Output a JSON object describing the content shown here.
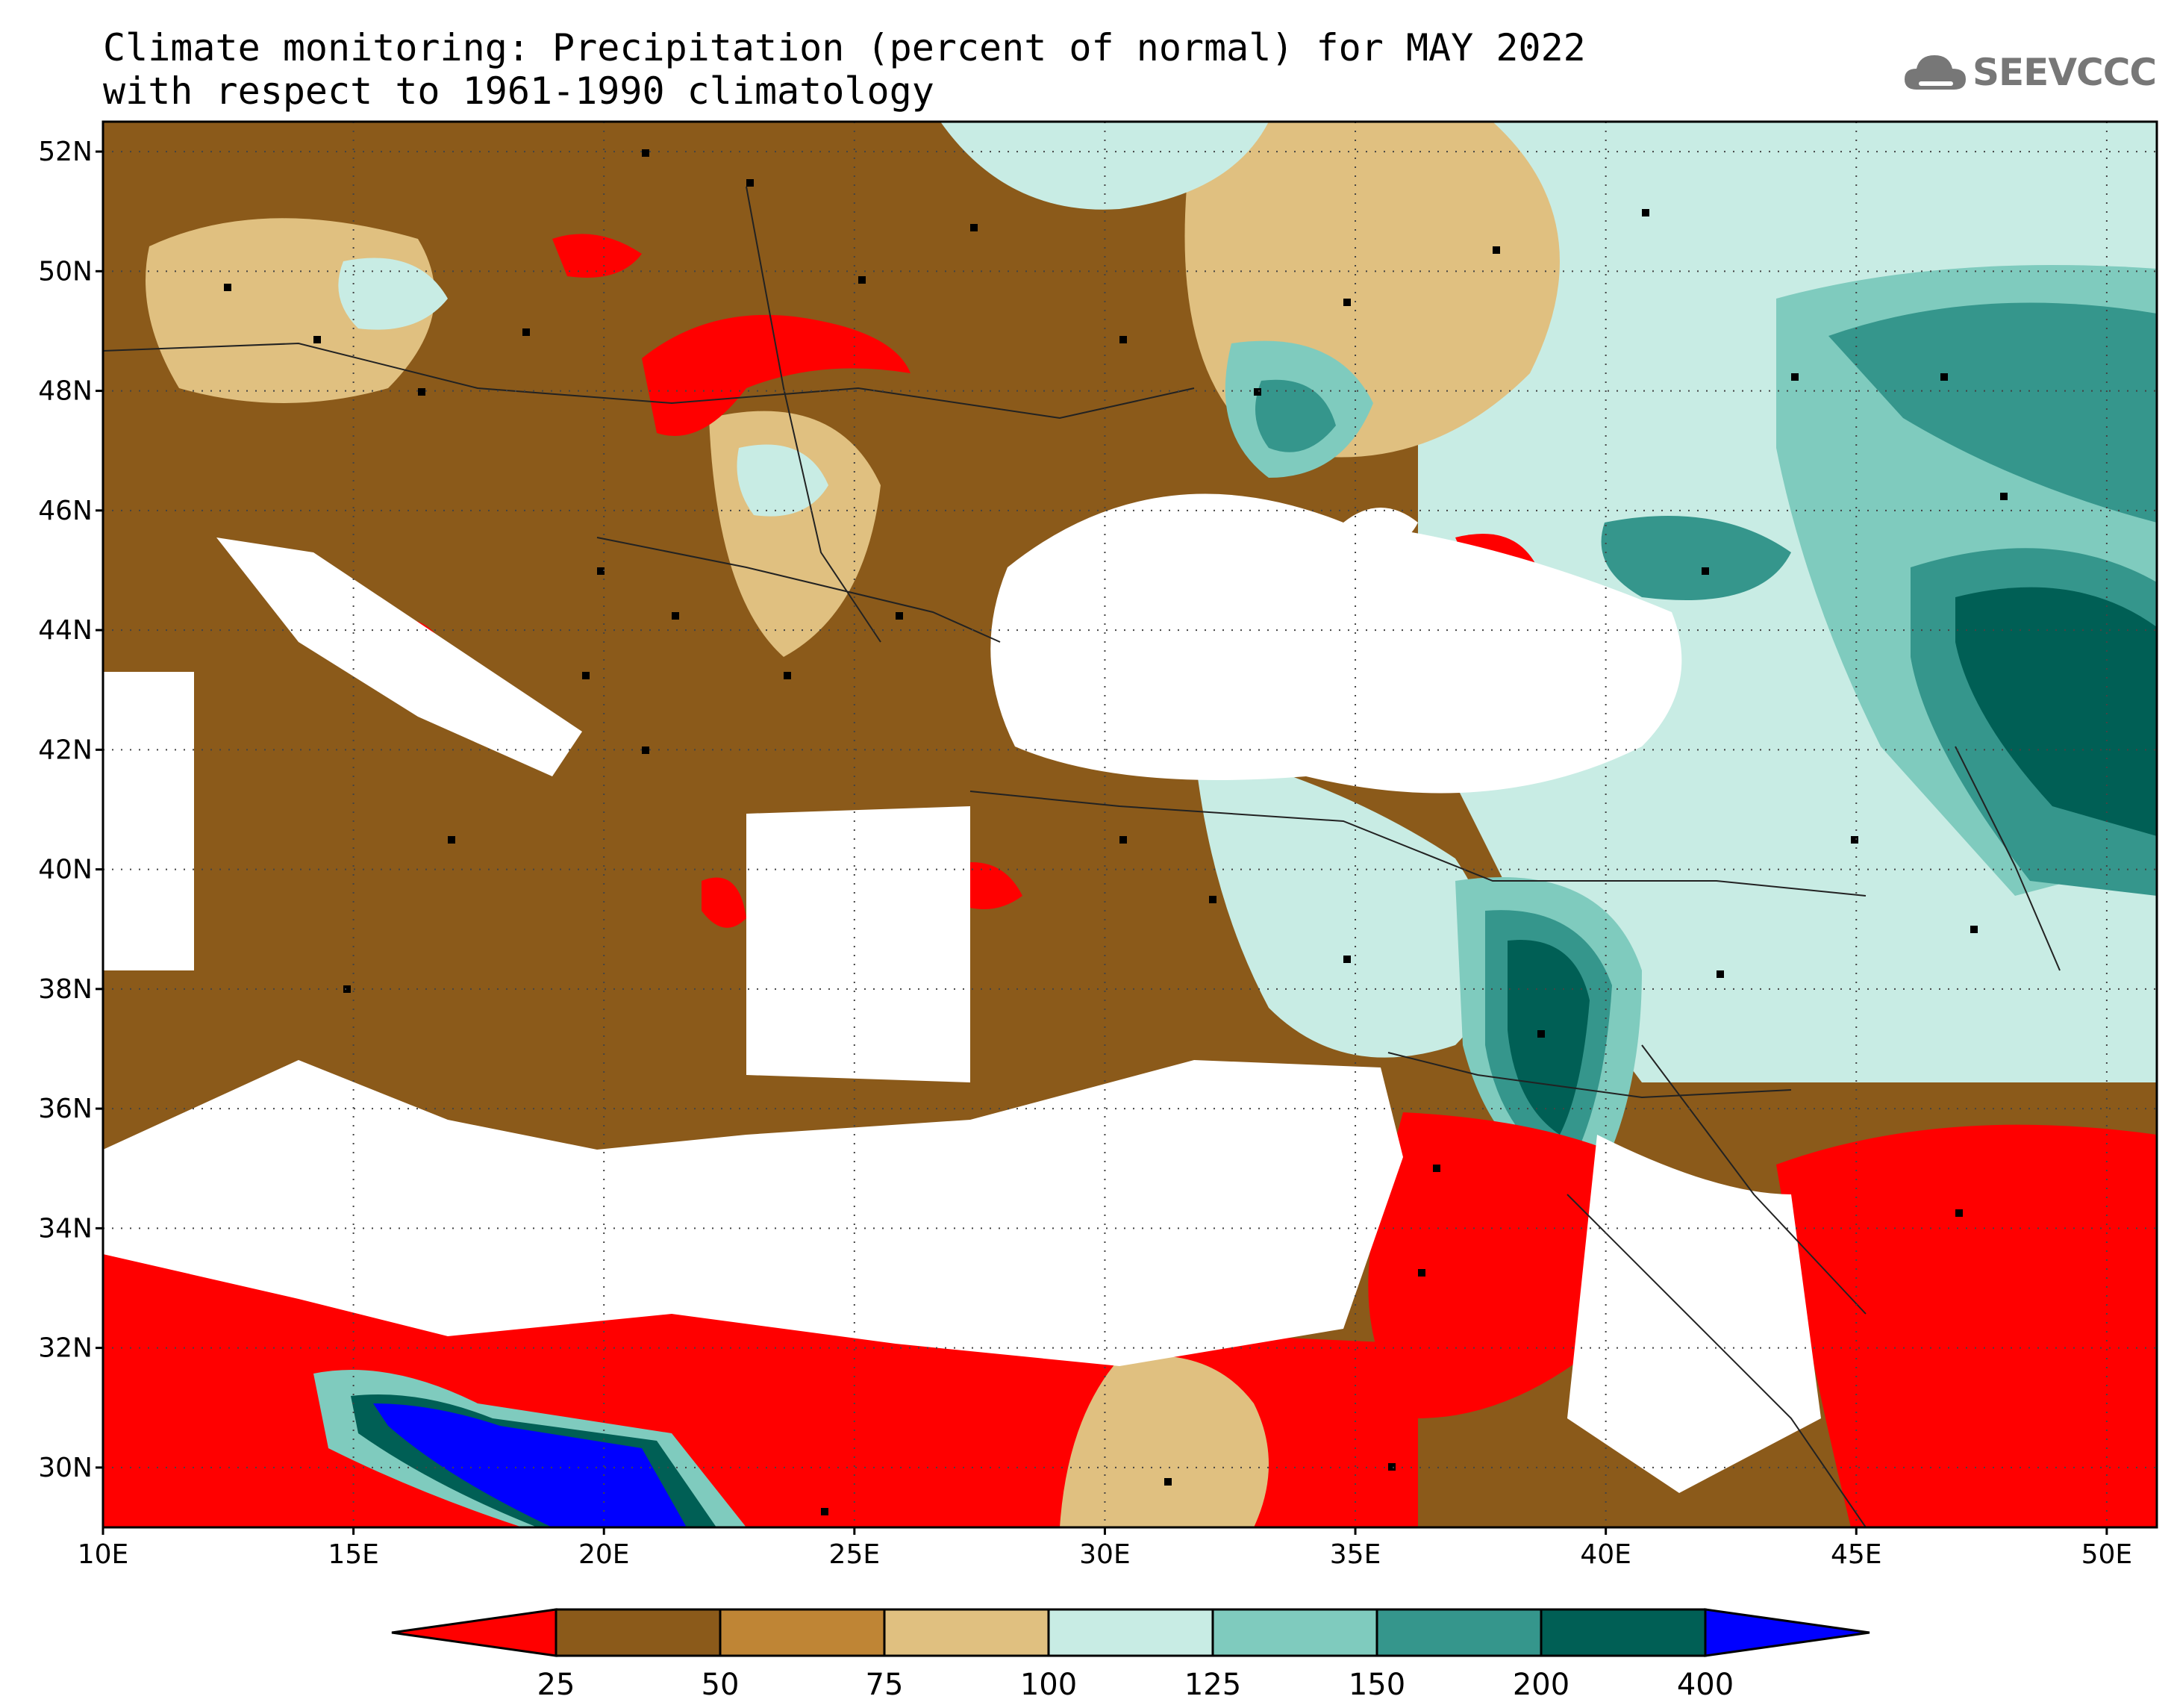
{
  "title": {
    "line1": "Climate monitoring: Precipitation (percent of normal) for MAY 2022",
    "line2": "with respect to 1961-1990 climatology"
  },
  "logo": {
    "text": "SEEVCCC",
    "icon": "cloud-icon",
    "color": "#777777"
  },
  "axes": {
    "lon_range": [
      10,
      51
    ],
    "lat_range": [
      29,
      52.5
    ],
    "lon_ticks": [
      10,
      15,
      20,
      25,
      30,
      35,
      40,
      45,
      50
    ],
    "lat_ticks": [
      30,
      32,
      34,
      36,
      38,
      40,
      42,
      44,
      46,
      48,
      50,
      52
    ],
    "lon_labels": [
      "10E",
      "15E",
      "20E",
      "25E",
      "30E",
      "35E",
      "40E",
      "45E",
      "50E"
    ],
    "lat_labels": [
      "30N",
      "32N",
      "34N",
      "36N",
      "38N",
      "40N",
      "42N",
      "44N",
      "46N",
      "48N",
      "50N",
      "52N"
    ],
    "grid": "dotted"
  },
  "colorbar": {
    "breaks": [
      "25",
      "50",
      "75",
      "100",
      "125",
      "150",
      "200",
      "400"
    ],
    "colors": [
      "#ff0000",
      "#8b5a1a",
      "#bf8535",
      "#e0c080",
      "#c8ece4",
      "#7fcbbe",
      "#35968c",
      "#005f55",
      "#0000ff"
    ],
    "extend": "both"
  },
  "legend_placement": "bottom",
  "ocean_color": "#ffffff"
}
